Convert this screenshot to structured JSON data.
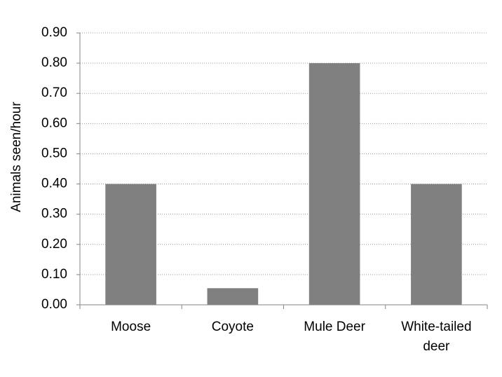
{
  "chart_data": {
    "type": "bar",
    "y_label": "Animals seen/hour",
    "categories": [
      "Moose",
      "Coyote",
      "Mule Deer",
      "White-tailed deer"
    ],
    "values": [
      0.4,
      0.055,
      0.8,
      0.4
    ],
    "color": "#808080",
    "ylim": [
      0,
      0.9
    ],
    "yticks": [
      {
        "value": 0,
        "label": "0.00"
      },
      {
        "value": 0.1,
        "label": "0.10"
      },
      {
        "value": 0.2,
        "label": "0.20"
      },
      {
        "value": 0.3,
        "label": "0.30"
      },
      {
        "value": 0.4,
        "label": "0.40"
      },
      {
        "value": 0.5,
        "label": "0.50"
      },
      {
        "value": 0.6,
        "label": "0.60"
      },
      {
        "value": 0.7,
        "label": "0.70"
      },
      {
        "value": 0.8,
        "label": "0.80"
      },
      {
        "value": 0.9,
        "label": "0.90"
      }
    ],
    "grid": true
  }
}
